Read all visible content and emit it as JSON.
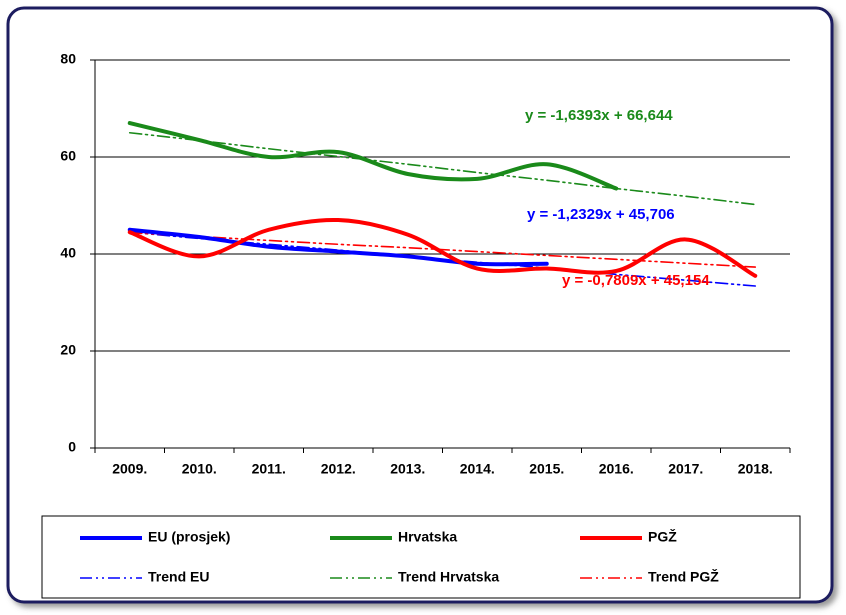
{
  "chart_data": {
    "type": "line",
    "categories": [
      "2009.",
      "2010.",
      "2011.",
      "2012.",
      "2013.",
      "2014.",
      "2015.",
      "2016.",
      "2017.",
      "2018."
    ],
    "ylim": [
      0,
      80
    ],
    "yticks": [
      0,
      20,
      40,
      60,
      80
    ],
    "grid": true,
    "legend": "bottom",
    "series": [
      {
        "name": "EU (prosjek)",
        "color": "#0000ff",
        "line_style": "solid",
        "values": [
          45,
          43.5,
          41.5,
          40.5,
          39.5,
          38,
          38,
          null,
          null,
          null
        ]
      },
      {
        "name": "Hrvatska",
        "color": "#1a8a1a",
        "line_style": "solid",
        "values": [
          67,
          63.5,
          60,
          61,
          56.5,
          55.5,
          58.5,
          53.5,
          null,
          null
        ]
      },
      {
        "name": "PGŽ",
        "color": "#ff0000",
        "line_style": "solid",
        "values": [
          44.5,
          39.5,
          45,
          47,
          44,
          37,
          37,
          36.5,
          43,
          35.5
        ]
      },
      {
        "name": "Trend EU",
        "color": "#0000ff",
        "line_style": "dashdotdot",
        "values": [
          44.5,
          43.2,
          42.0,
          40.8,
          39.5,
          38.3,
          37.1,
          35.8,
          34.6,
          33.4
        ]
      },
      {
        "name": "Trend Hrvatska",
        "color": "#1a8a1a",
        "line_style": "dashdotdot",
        "values": [
          65.0,
          63.4,
          61.7,
          60.1,
          58.5,
          56.8,
          55.2,
          53.5,
          51.9,
          50.2
        ]
      },
      {
        "name": "Trend PGŽ",
        "color": "#ff0000",
        "line_style": "dashdotdot",
        "values": [
          44.4,
          43.6,
          42.8,
          42.0,
          41.3,
          40.5,
          39.7,
          38.9,
          38.1,
          37.3
        ]
      }
    ],
    "annotations": [
      {
        "text": "y = -1,6393x + 66,644",
        "color": "#1a8a1a"
      },
      {
        "text": "y = -1,2329x + 45,706",
        "color": "#0000ff"
      },
      {
        "text": "y = -0,7809x + 45,154",
        "color": "#ff0000"
      }
    ]
  }
}
